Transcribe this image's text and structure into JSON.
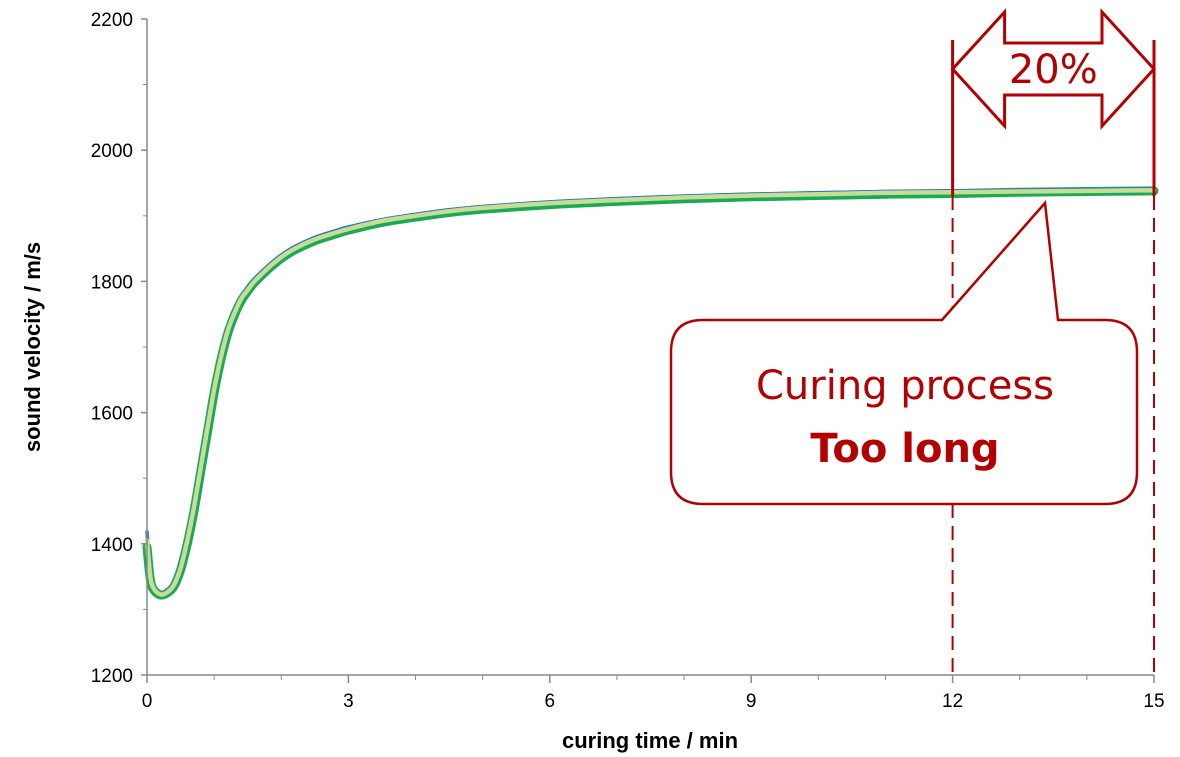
{
  "chart_data": {
    "type": "line",
    "title": "",
    "xlabel": "curing time / min",
    "ylabel": "sound velocity / m/s",
    "xlim": [
      0,
      15
    ],
    "ylim": [
      1200,
      2200
    ],
    "x_ticks": [
      0,
      3,
      6,
      9,
      12,
      15
    ],
    "y_ticks": [
      1200,
      1400,
      1600,
      1800,
      2000,
      2200
    ],
    "grid": false,
    "series": [
      {
        "color": "#1aaa55",
        "x": [
          0,
          0.05,
          0.1,
          0.2,
          0.3,
          0.4,
          0.5,
          0.6,
          0.7,
          0.8,
          0.9,
          1.0,
          1.1,
          1.2,
          1.3,
          1.4,
          1.5,
          1.6,
          1.8,
          2.0,
          2.2,
          2.5,
          2.8,
          3.0,
          3.5,
          4.0,
          4.5,
          5.0,
          6.0,
          7.0,
          8.0,
          9.0,
          10.0,
          11.0,
          12.0,
          13.0,
          14.0,
          15.0
        ],
        "y": [
          1395,
          1345,
          1330,
          1322,
          1325,
          1335,
          1360,
          1400,
          1450,
          1510,
          1570,
          1630,
          1680,
          1720,
          1748,
          1770,
          1785,
          1798,
          1818,
          1835,
          1848,
          1862,
          1872,
          1878,
          1890,
          1898,
          1905,
          1910,
          1917,
          1922,
          1926,
          1929,
          1931,
          1933,
          1934,
          1936,
          1937,
          1938
        ]
      },
      {
        "color": "#2e6fc4",
        "x": [
          0,
          0.05,
          0.1,
          0.2,
          0.3,
          0.4,
          0.5,
          0.6,
          0.7,
          0.8,
          0.9,
          1.0,
          1.1,
          1.2,
          1.3,
          1.4,
          1.5,
          1.6,
          1.8,
          2.0,
          2.2,
          2.5,
          2.8,
          3.0,
          3.5,
          4.0,
          4.5,
          5.0,
          6.0,
          7.0,
          8.0,
          9.0,
          10.0,
          11.0,
          12.0,
          13.0,
          14.0,
          15.0
        ],
        "y": [
          1418,
          1355,
          1335,
          1324,
          1328,
          1340,
          1368,
          1410,
          1462,
          1522,
          1582,
          1640,
          1688,
          1728,
          1755,
          1776,
          1790,
          1803,
          1823,
          1840,
          1853,
          1867,
          1877,
          1883,
          1894,
          1902,
          1909,
          1914,
          1921,
          1926,
          1930,
          1933,
          1935,
          1937,
          1938,
          1939,
          1940,
          1941
        ]
      },
      {
        "color": "#c8dc96",
        "x": [
          0,
          0.05,
          0.1,
          0.2,
          0.3,
          0.4,
          0.5,
          0.6,
          0.7,
          0.8,
          0.9,
          1.0,
          1.1,
          1.2,
          1.3,
          1.4,
          1.5,
          1.6,
          1.8,
          2.0,
          2.2,
          2.5,
          2.8,
          3.0,
          3.5,
          4.0,
          4.5,
          5.0,
          6.0,
          7.0,
          8.0,
          9.0,
          10.0,
          11.0,
          12.0,
          13.0,
          14.0,
          15.0
        ],
        "y": [
          1405,
          1350,
          1332,
          1323,
          1326,
          1337,
          1363,
          1405,
          1456,
          1516,
          1576,
          1635,
          1684,
          1724,
          1751,
          1773,
          1787,
          1800,
          1820,
          1837,
          1850,
          1864,
          1874,
          1880,
          1892,
          1900,
          1907,
          1912,
          1919,
          1924,
          1928,
          1931,
          1933,
          1935,
          1936,
          1937,
          1938,
          1939
        ]
      }
    ],
    "annotations": {
      "bracket": {
        "x_start": 12,
        "x_end": 15,
        "label": "20%",
        "color": "#b30000"
      },
      "callout": {
        "line1": "Curing process",
        "line2": "Too long",
        "color": "#b30000"
      }
    }
  }
}
